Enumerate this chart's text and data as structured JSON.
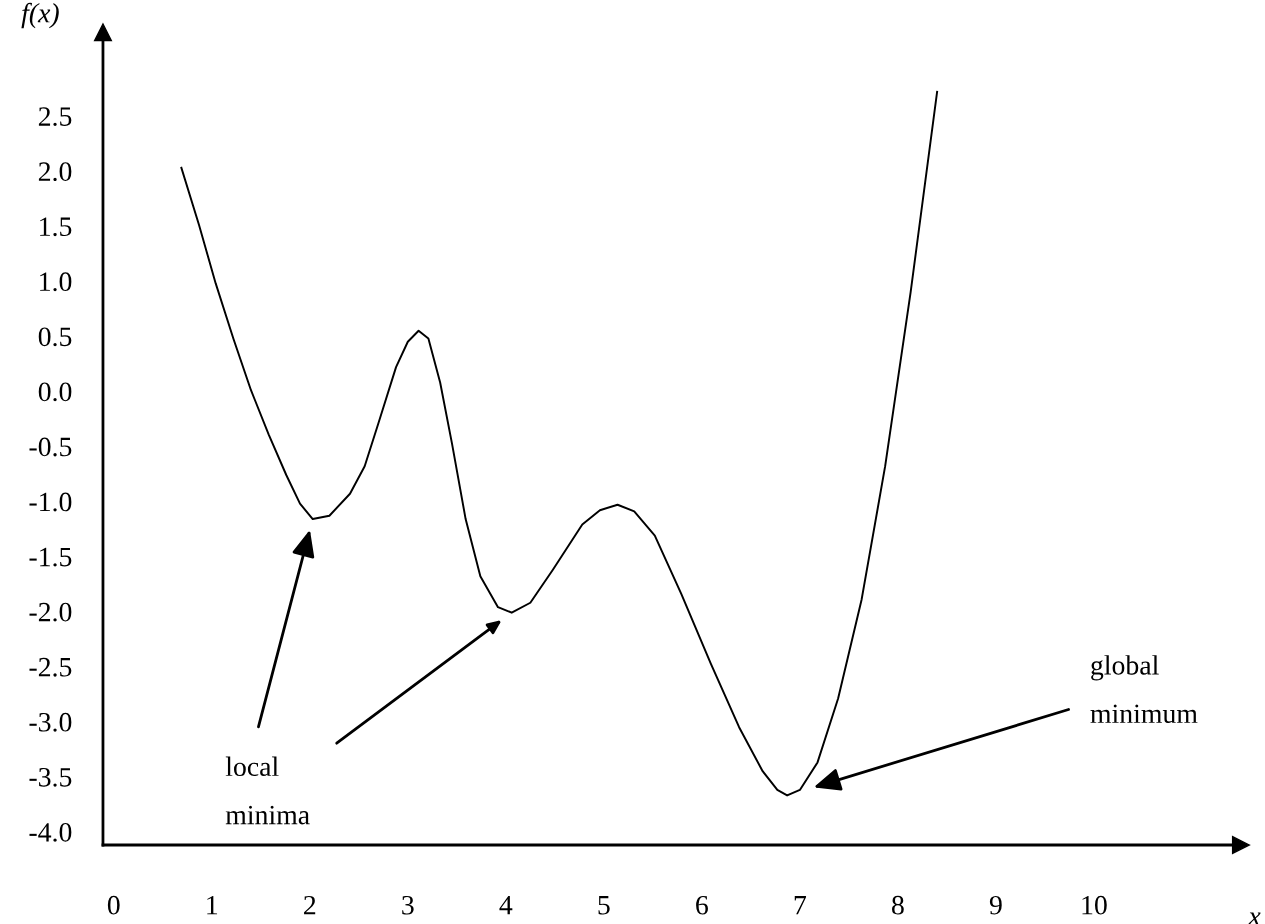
{
  "chart_data": {
    "type": "line",
    "xlabel": "x",
    "ylabel": "f(x)",
    "x": [
      0.69,
      0.87,
      1.04,
      1.22,
      1.4,
      1.58,
      1.76,
      1.9,
      2.03,
      2.2,
      2.41,
      2.56,
      2.7,
      2.88,
      3.0,
      3.11,
      3.21,
      3.33,
      3.45,
      3.59,
      3.74,
      3.92,
      4.06,
      4.25,
      4.48,
      4.78,
      4.96,
      5.14,
      5.31,
      5.52,
      5.79,
      6.09,
      6.38,
      6.62,
      6.77,
      6.87,
      7.0,
      7.18,
      7.39,
      7.63,
      7.87,
      8.13,
      8.4
    ],
    "series": [
      {
        "color": "#000000",
        "values": [
          2.03,
          1.51,
          0.98,
          0.48,
          0.01,
          -0.39,
          -0.76,
          -1.02,
          -1.16,
          -1.13,
          -0.93,
          -0.68,
          -0.29,
          0.22,
          0.45,
          0.55,
          0.48,
          0.08,
          -0.47,
          -1.16,
          -1.68,
          -1.96,
          -2.01,
          -1.92,
          -1.62,
          -1.21,
          -1.08,
          -1.03,
          -1.09,
          -1.31,
          -1.84,
          -2.47,
          -3.05,
          -3.45,
          -3.62,
          -3.67,
          -3.62,
          -3.37,
          -2.79,
          -1.89,
          -0.68,
          0.9,
          2.72
        ]
      }
    ],
    "xlim": [
      -0.11,
      11.5
    ],
    "ylim": [
      -4.12,
      3.26
    ],
    "xticks": [
      0,
      1,
      2,
      3,
      4,
      5,
      6,
      7,
      8,
      9,
      10
    ],
    "yticks": [
      {
        "value": 2.5,
        "label": "2.5"
      },
      {
        "value": 2.0,
        "label": "2.0"
      },
      {
        "value": 1.5,
        "label": "1.5"
      },
      {
        "value": 1.0,
        "label": "1.0"
      },
      {
        "value": 0.5,
        "label": "0.5"
      },
      {
        "value": 0.0,
        "label": "0.0"
      },
      {
        "value": -0.5,
        "label": "-0.5"
      },
      {
        "value": -1.0,
        "label": "-1.0"
      },
      {
        "value": -1.5,
        "label": "-1.5"
      },
      {
        "value": -2.0,
        "label": "-2.0"
      },
      {
        "value": -2.5,
        "label": "-2.5"
      },
      {
        "value": -3.0,
        "label": "-3.0"
      },
      {
        "value": -3.5,
        "label": "-3.5"
      },
      {
        "value": -4.0,
        "label": "-4.0"
      }
    ],
    "annotations": [
      "local\nminima",
      "global\nminimum"
    ],
    "grid": false,
    "legend": false,
    "marker": "none",
    "line_style": "solid"
  }
}
